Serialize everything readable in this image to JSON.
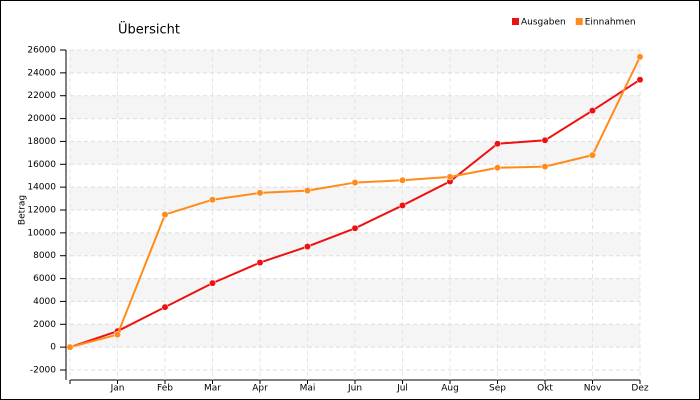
{
  "chart_data": {
    "type": "line",
    "title": "Übersicht",
    "y_label": "Betrag",
    "categories": [
      null,
      "Jan",
      "Feb",
      "Mar",
      "Apr",
      "Mai",
      "Jun",
      "Jul",
      "Aug",
      "Sep",
      "Okt",
      "Nov",
      "Dez"
    ],
    "series": [
      {
        "name": "Ausgaben",
        "color": "#ee1111",
        "values": [
          0,
          1400,
          3500,
          5600,
          7400,
          8800,
          10400,
          12400,
          14500,
          17800,
          18100,
          20700,
          23400
        ]
      },
      {
        "name": "Einnahmen",
        "color": "#ff8c1a",
        "values": [
          0,
          1100,
          11600,
          12900,
          13500,
          13700,
          14400,
          14600,
          14900,
          15700,
          15800,
          16800,
          25400
        ]
      }
    ],
    "ylim": [
      -2000,
      26000
    ],
    "yticks": [
      -2000,
      0,
      2000,
      4000,
      6000,
      8000,
      10000,
      12000,
      14000,
      16000,
      18000,
      20000,
      22000,
      24000,
      26000
    ],
    "grid": true,
    "legend": "top-right"
  }
}
